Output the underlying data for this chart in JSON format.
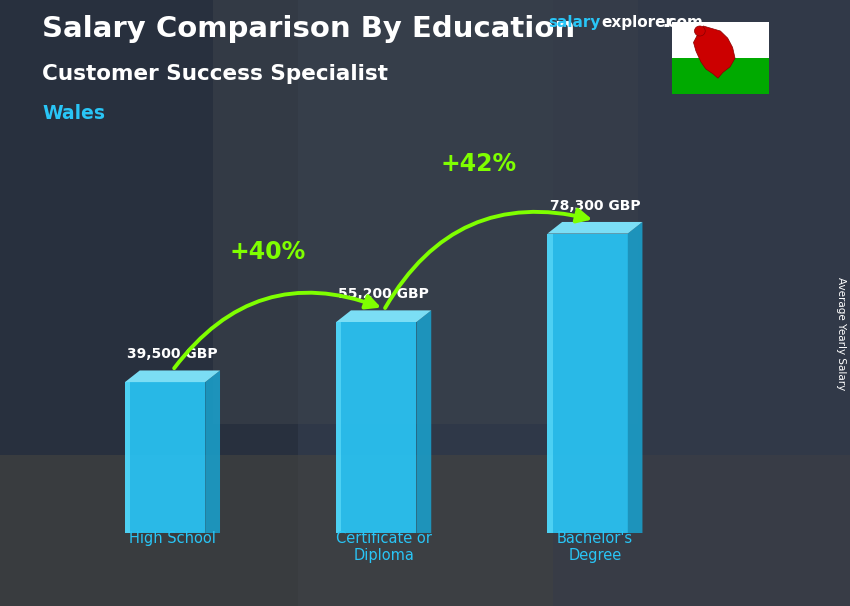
{
  "title_main": "Salary Comparison By Education",
  "subtitle": "Customer Success Specialist",
  "location": "Wales",
  "categories": [
    "High School",
    "Certificate or\nDiploma",
    "Bachelor's\nDegree"
  ],
  "values": [
    39500,
    55200,
    78300
  ],
  "value_labels": [
    "39,500 GBP",
    "55,200 GBP",
    "78,300 GBP"
  ],
  "pct_labels": [
    "+40%",
    "+42%"
  ],
  "bar_color_front": "#29c5f6",
  "bar_color_light": "#55d8ff",
  "bar_color_side": "#1aa0cc",
  "bar_color_top": "#80e8ff",
  "background_color": "#2a3a4a",
  "text_color_white": "#ffffff",
  "text_color_cyan": "#29c5f6",
  "text_color_green": "#7fff00",
  "ylabel": "Average Yearly Salary",
  "ylim": [
    0,
    95000
  ],
  "bar_width": 0.38,
  "fig_width": 8.5,
  "fig_height": 6.06,
  "salary_color": "#29c5f6",
  "explorer_color": "#ffffff",
  "x_positions": [
    0.18,
    0.5,
    0.82
  ]
}
